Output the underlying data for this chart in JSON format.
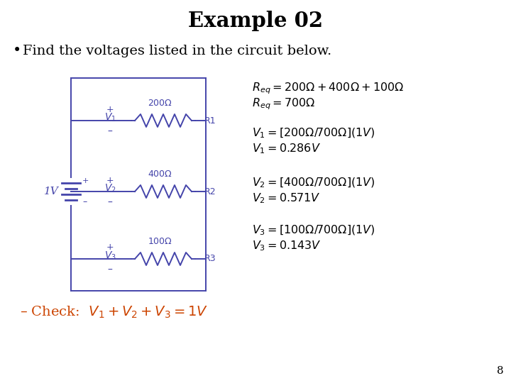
{
  "title": "Example 02",
  "bullet": "Find the voltages listed in the circuit below.",
  "background_color": "#ffffff",
  "title_color": "#000000",
  "bullet_color": "#000000",
  "circuit_color": "#4444aa",
  "formula_color": "#000000",
  "check_color": "#cc4400",
  "page_number": "8",
  "req_line1": "$R_{eq} = 200\\Omega + 400\\Omega + 100\\Omega$",
  "req_line2": "$R_{eq} = 700\\Omega$",
  "v1_line1": "$V_1 = [200\\Omega / 700\\Omega](1V)$",
  "v1_line2": "$V_1 = 0.286V$",
  "v2_line1": "$V_2 = [400\\Omega / 700\\Omega](1V)$",
  "v2_line2": "$V_2 = 0.571V$",
  "v3_line1": "$V_3 = [100\\Omega / 700\\Omega](1V)$",
  "v3_line2": "$V_3 = 0.143V$",
  "check_line": "– Check:  $V_1 + V_2 + V_3 = 1V$"
}
